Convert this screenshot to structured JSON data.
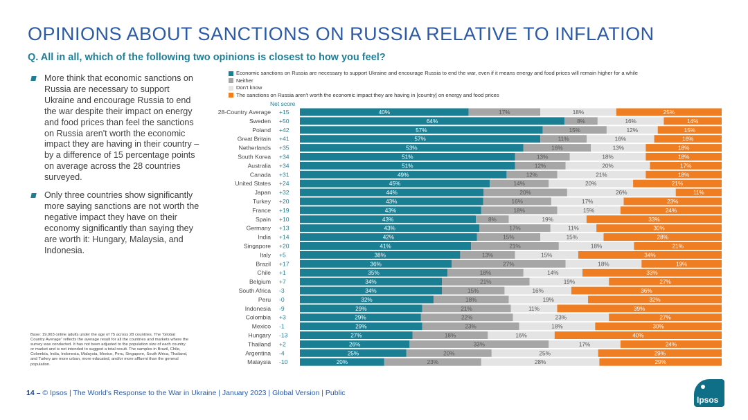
{
  "title": "OPINIONS ABOUT SANCTIONS ON RUSSIA RELATIVE TO INFLATION",
  "question": "Q. All in all, which of the following two opinions is closest to how you feel?",
  "bullets": [
    "More think that economic sanctions on Russia are necessary to support Ukraine and encourage Russia to end the war despite their impact on energy and food prices than feel the sanctions on Russia aren't worth the economic impact they are having in their country – by a difference of 15 percentage points on average across the 28 countries surveyed.",
    "Only three countries show significantly more saying sanctions are not worth the negative impact they have on their economy significantly than saying they are worth it: Hungary, Malaysia, and Indonesia."
  ],
  "note": "Base: 19,003 online adults under the age of 75 across 28 countries. The “Global Country Average” reflects the average result for all the countries and markets where the survey was conducted. It has not been adjusted to the population size of each country or market and is not intended to suggest a total result. The samples in Brazil, Chile, Colombia, India, Indonesia, Malaysia, Mexico, Peru, Singapore, South Africa, Thailand, and Turkey are more urban, more educated, and/or more affluent than the general population.",
  "legend": [
    {
      "label": "Economic sanctions on Russia are necessary to support Ukraine and encourage Russia to end the war, even if it means energy and food prices will remain higher for a while",
      "color": "#1a7f93"
    },
    {
      "label": "Neither",
      "color": "#a6a6a6"
    },
    {
      "label": "Don't know",
      "color": "#e4e4e4"
    },
    {
      "label": "The sanctions on Russia aren't worth the economic impact they are having in [country] on energy and food prices",
      "color": "#ef7d22"
    }
  ],
  "net_score_label": "Net score",
  "chart_data": {
    "type": "bar",
    "stacked": true,
    "orientation": "horizontal",
    "categories": [
      "28-Country Average",
      "Sweden",
      "Poland",
      "Great Britain",
      "Netherlands",
      "South Korea",
      "Australia",
      "Canada",
      "United States",
      "Japan",
      "Turkey",
      "France",
      "Spain",
      "Germany",
      "India",
      "Singapore",
      "Italy",
      "Brazil",
      "Chile",
      "Belgium",
      "South Africa",
      "Peru",
      "Indonesia",
      "Colombia",
      "Mexico",
      "Hungary",
      "Thailand",
      "Argentina",
      "Malaysia"
    ],
    "net_scores": [
      "+15",
      "+50",
      "+42",
      "+41",
      "+35",
      "+34",
      "+34",
      "+31",
      "+24",
      "+32",
      "+20",
      "+19",
      "+10",
      "+13",
      "+14",
      "+20",
      "+5",
      "+17",
      "+1",
      "+7",
      "-3",
      "-0",
      "-9",
      "+3",
      "-1",
      "-13",
      "+2",
      "-4",
      "-10"
    ],
    "series": [
      {
        "name": "Economic sanctions on Russia are necessary to support Ukraine and encourage Russia to end the war, even if it means energy and food prices will remain higher for a while",
        "color": "#1a7f93",
        "values": [
          40,
          64,
          57,
          57,
          53,
          51,
          51,
          49,
          45,
          44,
          43,
          43,
          43,
          43,
          42,
          41,
          38,
          36,
          35,
          34,
          34,
          32,
          29,
          29,
          29,
          27,
          26,
          25,
          20
        ]
      },
      {
        "name": "Neither",
        "color": "#a6a6a6",
        "values": [
          17,
          8,
          15,
          11,
          16,
          13,
          12,
          12,
          14,
          20,
          16,
          18,
          8,
          17,
          15,
          21,
          13,
          27,
          18,
          21,
          15,
          18,
          21,
          22,
          23,
          18,
          33,
          20,
          23
        ]
      },
      {
        "name": "Don't know",
        "color": "#e4e4e4",
        "values": [
          18,
          16,
          12,
          16,
          13,
          18,
          20,
          21,
          20,
          26,
          17,
          15,
          19,
          11,
          15,
          18,
          15,
          18,
          14,
          19,
          16,
          19,
          11,
          23,
          18,
          16,
          17,
          25,
          28
        ]
      },
      {
        "name": "The sanctions on Russia aren't worth the economic impact they are having in [country] on energy and food prices",
        "color": "#ef7d22",
        "values": [
          25,
          14,
          15,
          16,
          18,
          18,
          17,
          18,
          21,
          11,
          23,
          24,
          33,
          30,
          28,
          21,
          34,
          19,
          33,
          27,
          36,
          32,
          39,
          27,
          30,
          40,
          24,
          29,
          29
        ]
      }
    ],
    "value_suffix": "%",
    "xlim": [
      0,
      100
    ]
  },
  "footer": {
    "page": "14 –",
    "text": "© Ipsos | The World's Response to the War in Ukraine | January 2023 | Global Version | Public"
  },
  "logo_text": "Ipsos"
}
